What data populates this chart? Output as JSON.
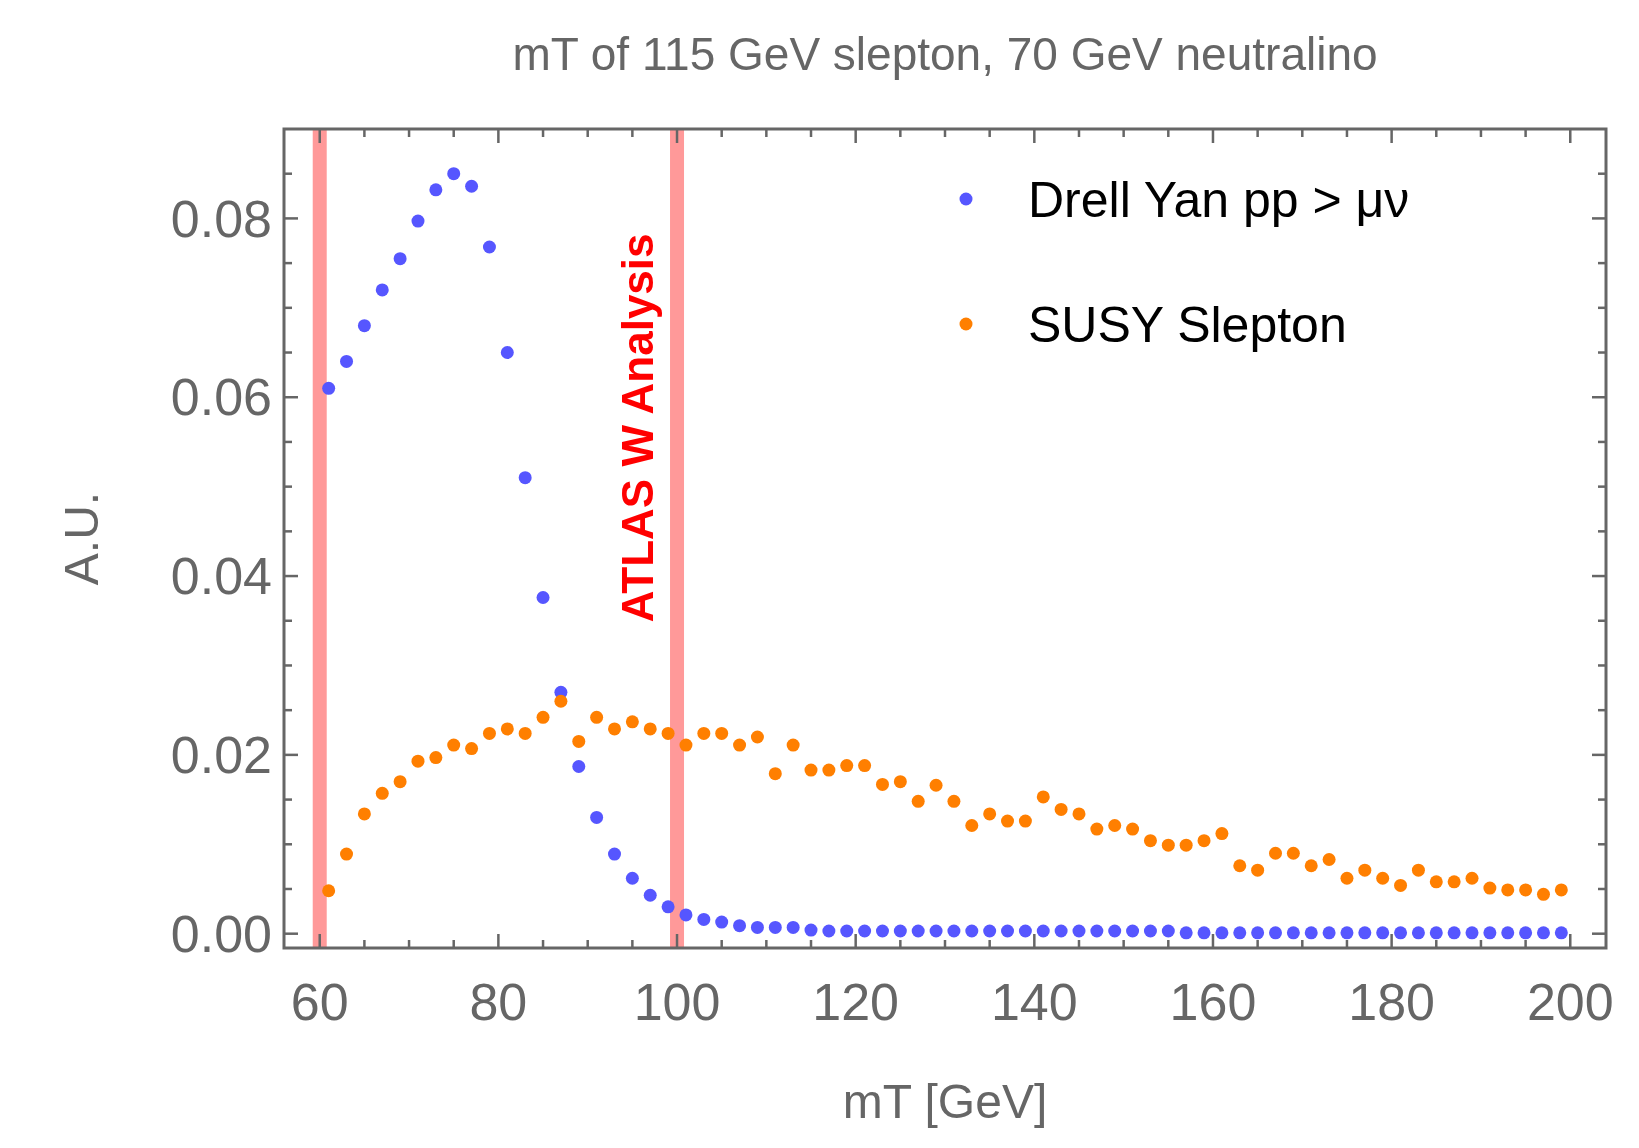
{
  "chart_data": {
    "type": "scatter",
    "title": "mT of 115 GeV slepton, 70 GeV neutralino",
    "xlabel": "mT [GeV]",
    "ylabel": "A.U.",
    "x": [
      61,
      63,
      65,
      67,
      69,
      71,
      73,
      75,
      77,
      79,
      81,
      83,
      85,
      87,
      89,
      91,
      93,
      95,
      97,
      99,
      101,
      103,
      105,
      107,
      109,
      111,
      113,
      115,
      117,
      119,
      121,
      123,
      125,
      127,
      129,
      131,
      133,
      135,
      137,
      139,
      141,
      143,
      145,
      147,
      149,
      151,
      153,
      155,
      157,
      159,
      161,
      163,
      165,
      167,
      169,
      171,
      173,
      175,
      177,
      179,
      181,
      183,
      185,
      187,
      189,
      191,
      193,
      195,
      197,
      199
    ],
    "series": [
      {
        "name": "Drell Yan pp > μν",
        "color": "#5656ff",
        "values": [
          0.061,
          0.064,
          0.068,
          0.072,
          0.0755,
          0.0797,
          0.0832,
          0.085,
          0.0836,
          0.0768,
          0.065,
          0.051,
          0.0376,
          0.027,
          0.0187,
          0.013,
          0.0089,
          0.0062,
          0.0043,
          0.003,
          0.0021,
          0.0016,
          0.0013,
          0.0009,
          0.0007,
          0.0007,
          0.0007,
          0.0004,
          0.0003,
          0.0003,
          0.0003,
          0.0003,
          0.0003,
          0.0003,
          0.0003,
          0.0003,
          0.0003,
          0.0003,
          0.0003,
          0.0003,
          0.0003,
          0.0003,
          0.0003,
          0.0003,
          0.0003,
          0.0003,
          0.0003,
          0.0003,
          0.0001,
          0.0001,
          0.0001,
          0.0001,
          0.0001,
          0.0001,
          0.0001,
          0.0001,
          0.0001,
          0.0001,
          0.0001,
          0.0001,
          0.0001,
          0.0001,
          0.0001,
          0.0001,
          0.0001,
          0.0001,
          0.0001,
          0.0001,
          0.0001,
          0.0001
        ]
      },
      {
        "name": "SUSY Slepton",
        "color": "#ff7f00",
        "values": [
          0.0048,
          0.0089,
          0.0134,
          0.0157,
          0.017,
          0.0193,
          0.0197,
          0.0211,
          0.0207,
          0.0224,
          0.0229,
          0.0224,
          0.0242,
          0.026,
          0.0215,
          0.0242,
          0.0229,
          0.0237,
          0.0229,
          0.0224,
          0.0211,
          0.0224,
          0.0224,
          0.0211,
          0.022,
          0.0179,
          0.0211,
          0.0183,
          0.0183,
          0.0188,
          0.0188,
          0.0167,
          0.017,
          0.0148,
          0.0166,
          0.0148,
          0.0121,
          0.0134,
          0.0126,
          0.0126,
          0.0153,
          0.0139,
          0.0134,
          0.0117,
          0.0121,
          0.0117,
          0.0104,
          0.0099,
          0.0099,
          0.0104,
          0.0112,
          0.0076,
          0.0071,
          0.009,
          0.009,
          0.0076,
          0.0083,
          0.0062,
          0.0071,
          0.0062,
          0.0054,
          0.0071,
          0.0058,
          0.0058,
          0.0062,
          0.0051,
          0.0049,
          0.0049,
          0.0044,
          0.0049
        ]
      }
    ],
    "xlim": [
      56,
      204
    ],
    "ylim": [
      -0.0016,
      0.09
    ],
    "xticks": [
      60,
      {
        "value": 65,
        "label": null
      },
      {
        "value": 70,
        "label": null
      },
      {
        "value": 75,
        "label": null
      },
      80,
      {
        "value": 85,
        "label": null
      },
      {
        "value": 90,
        "label": null
      },
      {
        "value": 95,
        "label": null
      },
      100,
      {
        "value": 105,
        "label": null
      },
      {
        "value": 110,
        "label": null
      },
      {
        "value": 115,
        "label": null
      },
      120,
      {
        "value": 125,
        "label": null
      },
      {
        "value": 130,
        "label": null
      },
      {
        "value": 135,
        "label": null
      },
      140,
      {
        "value": 145,
        "label": null
      },
      {
        "value": 150,
        "label": null
      },
      {
        "value": 155,
        "label": null
      },
      160,
      {
        "value": 165,
        "label": null
      },
      {
        "value": 170,
        "label": null
      },
      {
        "value": 175,
        "label": null
      },
      180,
      {
        "value": 185,
        "label": null
      },
      {
        "value": 190,
        "label": null
      },
      {
        "value": 195,
        "label": null
      },
      200
    ],
    "yticks": [
      {
        "value": 0,
        "label": "0.00"
      },
      {
        "value": 0.005,
        "label": null
      },
      {
        "value": 0.01,
        "label": null
      },
      {
        "value": 0.015,
        "label": null
      },
      {
        "value": 0.02,
        "label": "0.02"
      },
      {
        "value": 0.025,
        "label": null
      },
      {
        "value": 0.03,
        "label": null
      },
      {
        "value": 0.035,
        "label": null
      },
      {
        "value": 0.04,
        "label": "0.04"
      },
      {
        "value": 0.045,
        "label": null
      },
      {
        "value": 0.05,
        "label": null
      },
      {
        "value": 0.055,
        "label": null
      },
      {
        "value": 0.06,
        "label": "0.06"
      },
      {
        "value": 0.065,
        "label": null
      },
      {
        "value": 0.07,
        "label": null
      },
      {
        "value": 0.075,
        "label": null
      },
      {
        "value": 0.08,
        "label": "0.08"
      },
      {
        "value": 0.085,
        "label": null
      }
    ],
    "ref_lines": [
      {
        "axis": "x",
        "value": 60,
        "color": "#ff9999"
      },
      {
        "axis": "x",
        "value": 100,
        "label": "ATLAS W Analysis",
        "color": "#ff9999"
      }
    ],
    "legend": "top right",
    "marker": "circle",
    "grid": false
  }
}
